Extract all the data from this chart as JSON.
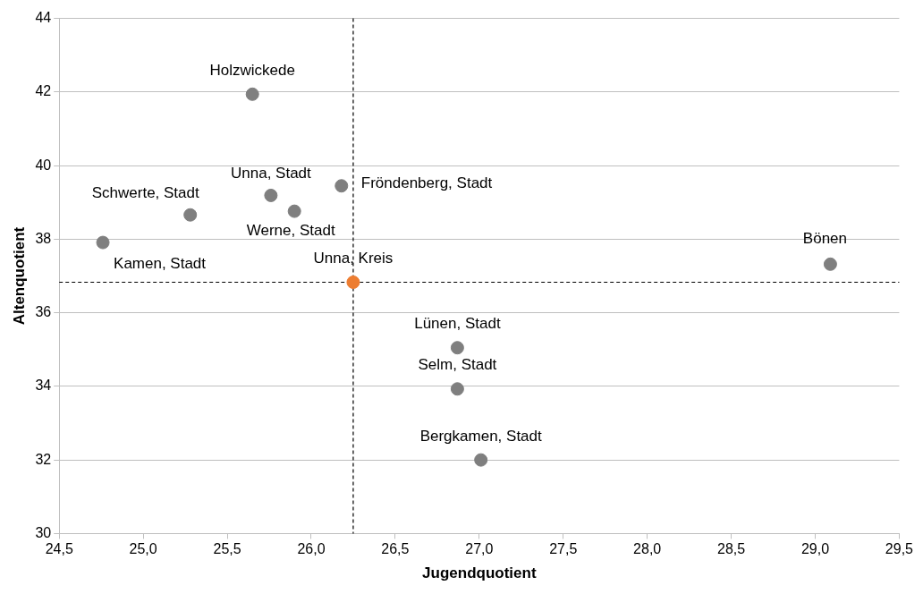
{
  "chart_data": {
    "type": "scatter",
    "xlabel": "Jugendquotient",
    "ylabel": "Altenquotient",
    "series": [
      {
        "color": "#7f7f7f",
        "x": [
          25.65,
          25.76,
          26.18,
          25.28,
          25.9,
          24.76,
          29.09,
          26.87,
          26.87,
          27.01
        ],
        "values": [
          41.94,
          39.19,
          39.45,
          38.66,
          38.76,
          37.91,
          37.32,
          35.05,
          33.93,
          32.0
        ]
      },
      {
        "color": "#ed7d31",
        "x": [
          26.25
        ],
        "values": [
          36.83
        ]
      }
    ],
    "xlim": [
      24.5,
      29.5
    ],
    "xticks": [
      {
        "value": 24.5,
        "label": "24,5"
      },
      {
        "value": 25,
        "label": "25,0"
      },
      {
        "value": 25.5,
        "label": "25,5"
      },
      {
        "value": 26,
        "label": "26,0"
      },
      {
        "value": 26.5,
        "label": "26,5"
      },
      {
        "value": 27,
        "label": "27,0"
      },
      {
        "value": 27.5,
        "label": "27,5"
      },
      {
        "value": 28,
        "label": "28,0"
      },
      {
        "value": 28.5,
        "label": "28,5"
      },
      {
        "value": 29,
        "label": "29,0"
      },
      {
        "value": 29.5,
        "label": "29,5"
      }
    ],
    "ylim": [
      30,
      44
    ],
    "yticks": [
      30,
      32,
      34,
      36,
      38,
      40,
      42,
      44
    ],
    "grid": "y",
    "legend": false,
    "marker": "circle",
    "ref_lines": [
      {
        "axis": "x",
        "value": 26.25,
        "color": "#000000",
        "line_style": "dashed"
      },
      {
        "axis": "y",
        "value": 36.83,
        "color": "#000000",
        "line_style": "dashed"
      }
    ],
    "annotations": [
      {
        "text": "Holzwickede",
        "x": 25.65,
        "y": 41.94
      },
      {
        "text": "Unna, Stadt",
        "x": 25.76,
        "y": 39.19
      },
      {
        "text": "Fröndenberg, Stadt",
        "x": 26.18,
        "y": 39.45
      },
      {
        "text": "Schwerte, Stadt",
        "x": 25.28,
        "y": 38.66
      },
      {
        "text": "Werne, Stadt",
        "x": 25.9,
        "y": 38.76
      },
      {
        "text": "Kamen, Stadt",
        "x": 24.76,
        "y": 37.91
      },
      {
        "text": "Bönen",
        "x": 29.09,
        "y": 37.32
      },
      {
        "text": "Lünen, Stadt",
        "x": 26.87,
        "y": 35.05
      },
      {
        "text": "Selm, Stadt",
        "x": 26.87,
        "y": 33.93
      },
      {
        "text": "Bergkamen, Stadt",
        "x": 27.01,
        "y": 32.0
      },
      {
        "text": "Unna, Kreis",
        "x": 26.25,
        "y": 36.83
      }
    ]
  }
}
